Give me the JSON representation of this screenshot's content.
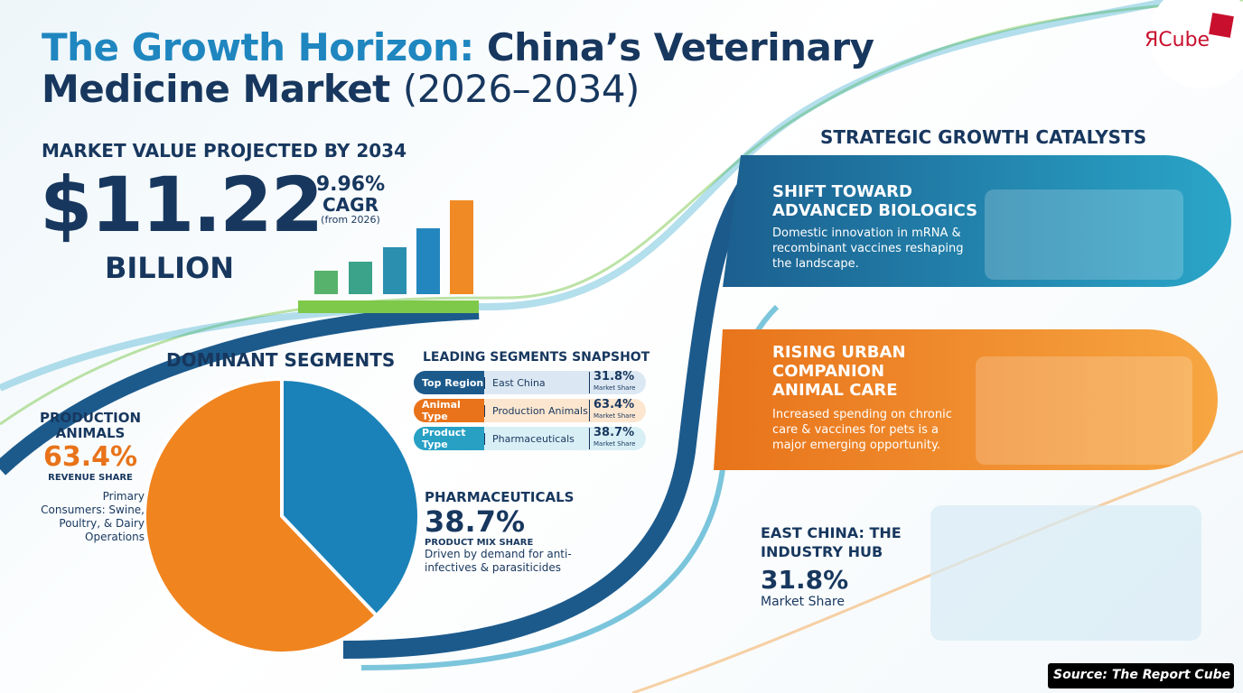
{
  "header": {
    "title_lead": "The Growth Horizon:",
    "title_main": "China’s Veterinary",
    "title_line2": "Medicine Market",
    "title_years": "(2026–2034)"
  },
  "logo": {
    "text": "ЯCube"
  },
  "market_value": {
    "heading": "MARKET VALUE PROJECTED BY 2034",
    "value": "$11.22",
    "unit": "BILLION",
    "cagr": "9.96%",
    "cagr_label": "CAGR",
    "cagr_note": "(from 2026)"
  },
  "dominant_segments": {
    "heading": "DOMINANT SEGMENTS",
    "segments": [
      {
        "name": "PRODUCTION ANIMALS",
        "share": 63.4,
        "share_label": "63.4%",
        "metric": "REVENUE SHARE",
        "note": "Primary Consumers: Swine, Poultry, & Dairy Operations",
        "color": "#f0841f"
      },
      {
        "name": "PHARMACEUTICALS",
        "share": 38.7,
        "share_label": "38.7%",
        "metric": "PRODUCT MIX SHARE",
        "note": "Driven by demand for anti-infectives & parasiticides",
        "color": "#1a82b8"
      }
    ]
  },
  "snapshot": {
    "heading": "LEADING SEGMENTS SNAPSHOT",
    "rows": [
      {
        "category": "Top Region",
        "value": "East China",
        "share": "31.8%",
        "share_note": "Market Share"
      },
      {
        "category": "Animal Type",
        "value": "Production Animals",
        "share": "63.4%",
        "share_note": "Market Share"
      },
      {
        "category": "Product Type",
        "value": "Pharmaceuticals",
        "share": "38.7%",
        "share_note": "Market Share"
      }
    ]
  },
  "catalysts": {
    "heading": "STRATEGIC GROWTH CATALYSTS",
    "items": [
      {
        "title": "SHIFT TOWARD ADVANCED BIOLOGICS",
        "body": "Domestic innovation in mRNA & recombinant vaccines reshaping the landscape."
      },
      {
        "title": "RISING URBAN COMPANION ANIMAL CARE",
        "body": "Increased spending on chronic care & vaccines for pets is a major emerging opportunity."
      }
    ]
  },
  "hub": {
    "title": "EAST CHINA: THE INDUSTRY HUB",
    "value": "31.8%",
    "label": "Market Share"
  },
  "source": "Source: The Report Cube"
}
